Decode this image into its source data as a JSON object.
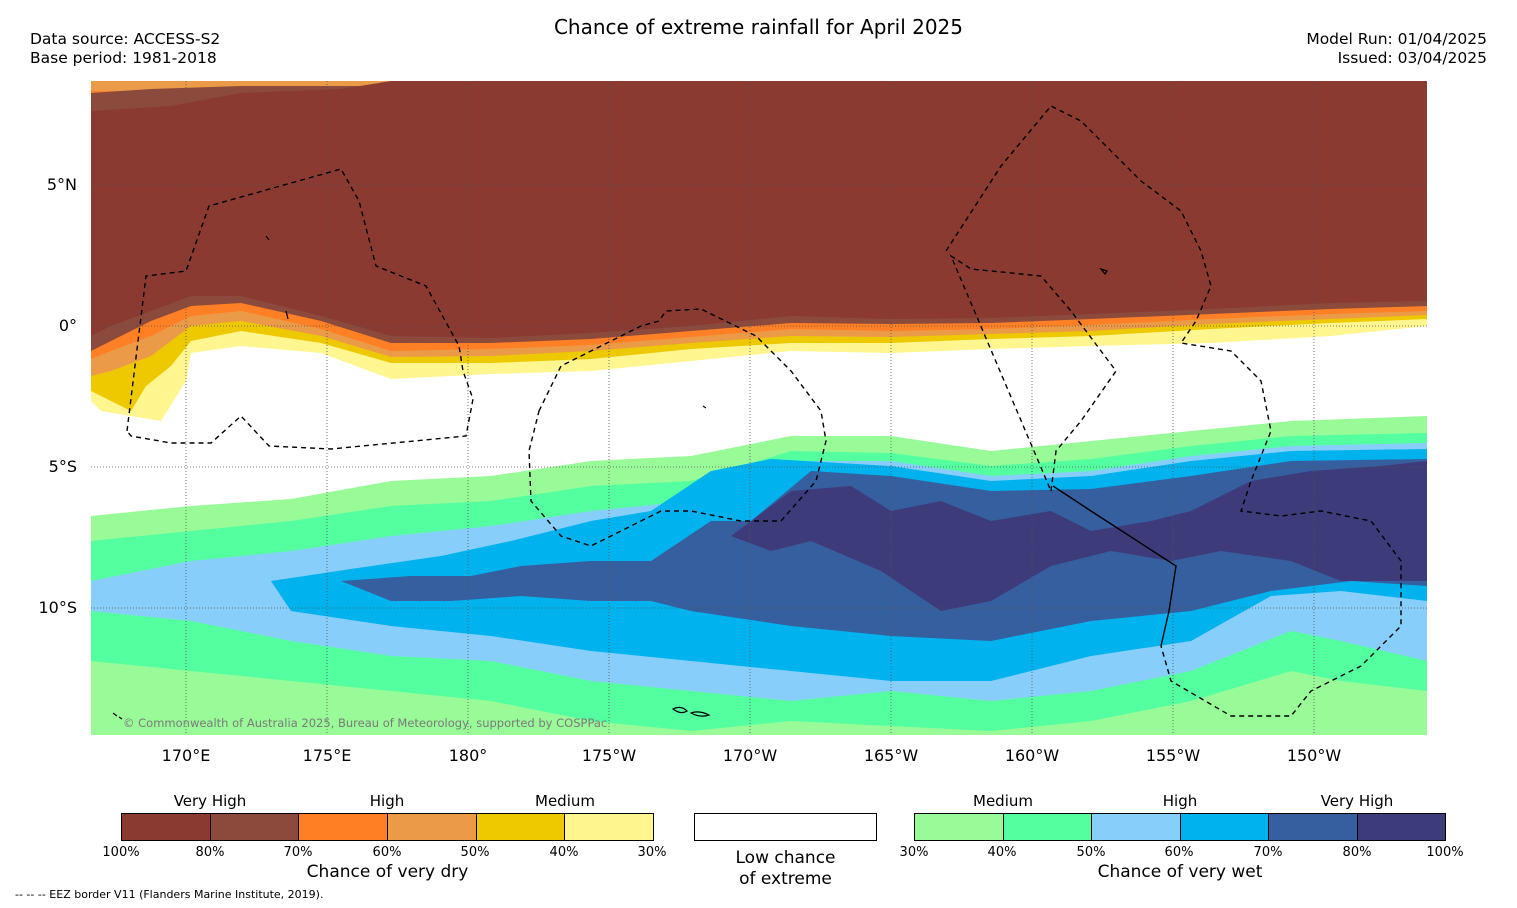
{
  "header": {
    "title": "Chance of extreme rainfall for April 2025",
    "data_source": "Data source: ACCESS-S2",
    "base_period": "Base period: 1981-2018",
    "model_run": "Model Run: 01/04/2025",
    "issued": "Issued: 03/04/2025"
  },
  "map": {
    "lat_labels": [
      "5°N",
      "0°",
      "5°S",
      "10°S"
    ],
    "lon_labels": [
      "170°E",
      "175°E",
      "180°",
      "175°W",
      "170°W",
      "165°W",
      "160°W",
      "155°W",
      "150°W"
    ],
    "copyright": "© Commonwealth of Australia 2025, Bureau of Meteorology, supported by COSPPac",
    "colors": {
      "dry_100_80": "#8b3a32",
      "dry_80_70": "#8b4a3c",
      "dry_70_60": "#ff7f24",
      "dry_60_50": "#eb9b48",
      "dry_50_40": "#eec900",
      "dry_40_30": "#fff68f",
      "low": "#ffffff",
      "wet_30_40": "#98fb98",
      "wet_40_50": "#54ff9f",
      "wet_50_60": "#87cefa",
      "wet_60_70": "#00b2ee",
      "wet_70_80": "#365f9f",
      "wet_80_100": "#3d3b7a"
    }
  },
  "legend": {
    "dry": {
      "categories": [
        "Very High",
        "High",
        "Medium"
      ],
      "ticks": [
        "100%",
        "80%",
        "70%",
        "60%",
        "50%",
        "40%",
        "30%"
      ],
      "title": "Chance of very dry",
      "colors": [
        "#8b3a32",
        "#8b4a3c",
        "#ff7f24",
        "#eb9b48",
        "#eec900",
        "#fff68f"
      ]
    },
    "low": {
      "title_line1": "Low chance",
      "title_line2": "of extreme"
    },
    "wet": {
      "categories": [
        "Medium",
        "High",
        "Very High"
      ],
      "ticks": [
        "30%",
        "40%",
        "50%",
        "60%",
        "70%",
        "80%",
        "100%"
      ],
      "title": "Chance of very wet",
      "colors": [
        "#98fb98",
        "#54ff9f",
        "#87cefa",
        "#00b2ee",
        "#365f9f",
        "#3d3b7a"
      ]
    }
  },
  "footnote": "--  --  -- EEZ border V11 (Flanders Marine Institute, 2019)."
}
